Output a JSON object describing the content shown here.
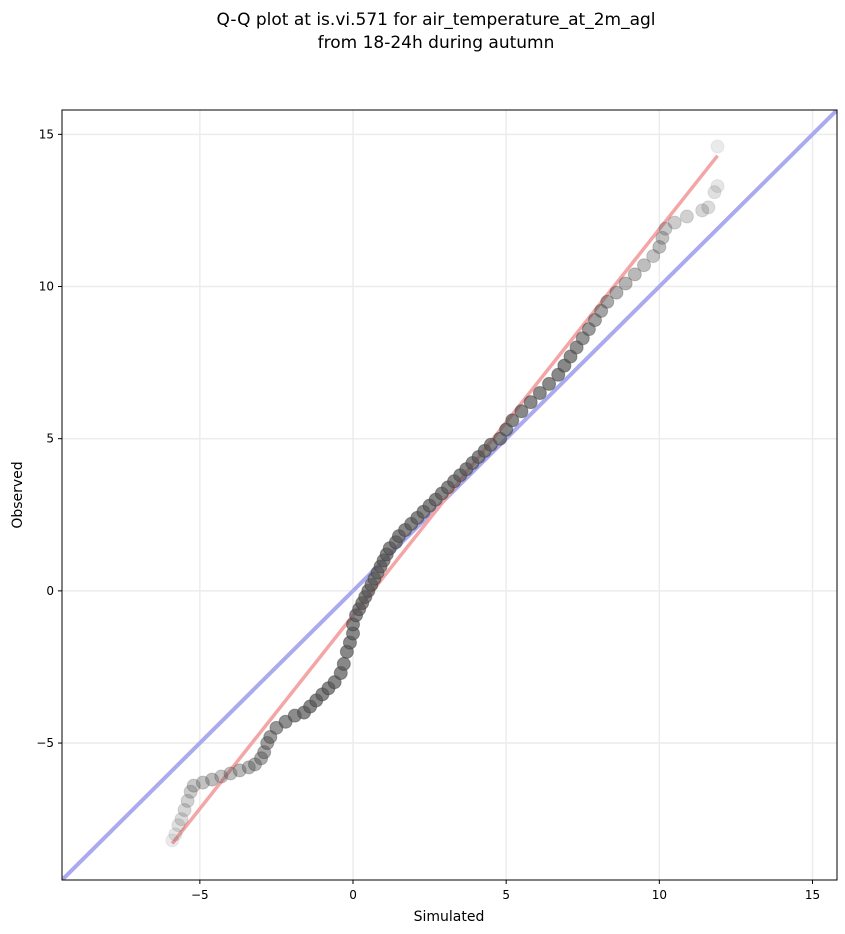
{
  "chart_data": {
    "type": "scatter",
    "title": "Q-Q plot at is.vi.571 for air_temperature_at_2m_agl",
    "subtitle": "from 18-24h during autumn",
    "xlabel": "Simulated",
    "ylabel": "Observed",
    "xlim": [
      -9.5,
      15.8
    ],
    "ylim": [
      -9.5,
      15.8
    ],
    "xticks": [
      -5,
      0,
      5,
      10,
      15
    ],
    "yticks": [
      -5,
      0,
      5,
      10,
      15
    ],
    "xtick_labels": [
      "−5",
      "0",
      "5",
      "10",
      "15"
    ],
    "ytick_labels": [
      "−5",
      "0",
      "5",
      "10",
      "15"
    ],
    "grid": true,
    "colors": {
      "points": "#555555",
      "identity_line": "#aaaaee",
      "fit_line": "#f4a6a6",
      "dense_highlight": "#0b1a66"
    },
    "reference_lines": [
      {
        "kind": "identity",
        "x": [
          -9.5,
          15.8
        ],
        "y": [
          -9.5,
          15.8
        ]
      },
      {
        "kind": "fit",
        "x": [
          -5.9,
          11.9
        ],
        "y": [
          -8.3,
          14.3
        ]
      }
    ],
    "points": [
      [
        -5.9,
        -8.2
      ],
      [
        -5.8,
        -8.0
      ],
      [
        -5.7,
        -7.7
      ],
      [
        -5.6,
        -7.5
      ],
      [
        -5.5,
        -7.2
      ],
      [
        -5.4,
        -6.9
      ],
      [
        -5.3,
        -6.6
      ],
      [
        -5.2,
        -6.4
      ],
      [
        -4.9,
        -6.3
      ],
      [
        -4.6,
        -6.2
      ],
      [
        -4.3,
        -6.1
      ],
      [
        -4.0,
        -6.0
      ],
      [
        -3.7,
        -5.9
      ],
      [
        -3.4,
        -5.8
      ],
      [
        -3.2,
        -5.7
      ],
      [
        -3.0,
        -5.5
      ],
      [
        -2.9,
        -5.3
      ],
      [
        -2.8,
        -5.0
      ],
      [
        -2.7,
        -4.8
      ],
      [
        -2.5,
        -4.5
      ],
      [
        -2.2,
        -4.3
      ],
      [
        -1.9,
        -4.1
      ],
      [
        -1.6,
        -4.0
      ],
      [
        -1.4,
        -3.8
      ],
      [
        -1.2,
        -3.6
      ],
      [
        -1.0,
        -3.4
      ],
      [
        -0.8,
        -3.2
      ],
      [
        -0.6,
        -3.0
      ],
      [
        -0.4,
        -2.7
      ],
      [
        -0.3,
        -2.4
      ],
      [
        -0.2,
        -2.0
      ],
      [
        -0.1,
        -1.7
      ],
      [
        0.0,
        -1.4
      ],
      [
        0.0,
        -1.1
      ],
      [
        0.1,
        -0.8
      ],
      [
        0.2,
        -0.6
      ],
      [
        0.3,
        -0.4
      ],
      [
        0.4,
        -0.2
      ],
      [
        0.5,
        0.0
      ],
      [
        0.6,
        0.2
      ],
      [
        0.7,
        0.4
      ],
      [
        0.8,
        0.6
      ],
      [
        0.9,
        0.8
      ],
      [
        1.0,
        1.0
      ],
      [
        1.1,
        1.2
      ],
      [
        1.2,
        1.4
      ],
      [
        1.4,
        1.6
      ],
      [
        1.5,
        1.8
      ],
      [
        1.7,
        2.0
      ],
      [
        1.9,
        2.2
      ],
      [
        2.1,
        2.4
      ],
      [
        2.3,
        2.6
      ],
      [
        2.5,
        2.8
      ],
      [
        2.7,
        3.0
      ],
      [
        2.9,
        3.2
      ],
      [
        3.1,
        3.4
      ],
      [
        3.3,
        3.6
      ],
      [
        3.5,
        3.8
      ],
      [
        3.7,
        4.0
      ],
      [
        3.9,
        4.2
      ],
      [
        4.1,
        4.4
      ],
      [
        4.3,
        4.6
      ],
      [
        4.5,
        4.8
      ],
      [
        4.8,
        5.0
      ],
      [
        5.0,
        5.3
      ],
      [
        5.2,
        5.6
      ],
      [
        5.5,
        5.9
      ],
      [
        5.8,
        6.2
      ],
      [
        6.1,
        6.5
      ],
      [
        6.4,
        6.8
      ],
      [
        6.7,
        7.1
      ],
      [
        6.9,
        7.4
      ],
      [
        7.1,
        7.7
      ],
      [
        7.3,
        8.0
      ],
      [
        7.5,
        8.3
      ],
      [
        7.7,
        8.6
      ],
      [
        7.9,
        8.9
      ],
      [
        8.1,
        9.2
      ],
      [
        8.3,
        9.5
      ],
      [
        8.6,
        9.8
      ],
      [
        8.9,
        10.1
      ],
      [
        9.2,
        10.4
      ],
      [
        9.5,
        10.7
      ],
      [
        9.8,
        11.0
      ],
      [
        10.0,
        11.3
      ],
      [
        10.1,
        11.6
      ],
      [
        10.2,
        11.9
      ],
      [
        10.5,
        12.1
      ],
      [
        10.9,
        12.3
      ],
      [
        11.4,
        12.5
      ],
      [
        11.6,
        12.6
      ],
      [
        11.8,
        13.1
      ],
      [
        11.9,
        13.3
      ],
      [
        11.9,
        14.6
      ]
    ]
  }
}
